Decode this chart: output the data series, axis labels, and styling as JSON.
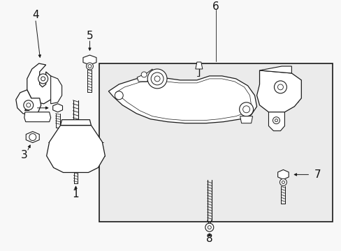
{
  "bg_color": "#f8f8f8",
  "box_bg": "#ebebeb",
  "lc": "#1a1a1a",
  "tc": "#111111",
  "fig_w": 4.89,
  "fig_h": 3.6,
  "dpi": 100
}
